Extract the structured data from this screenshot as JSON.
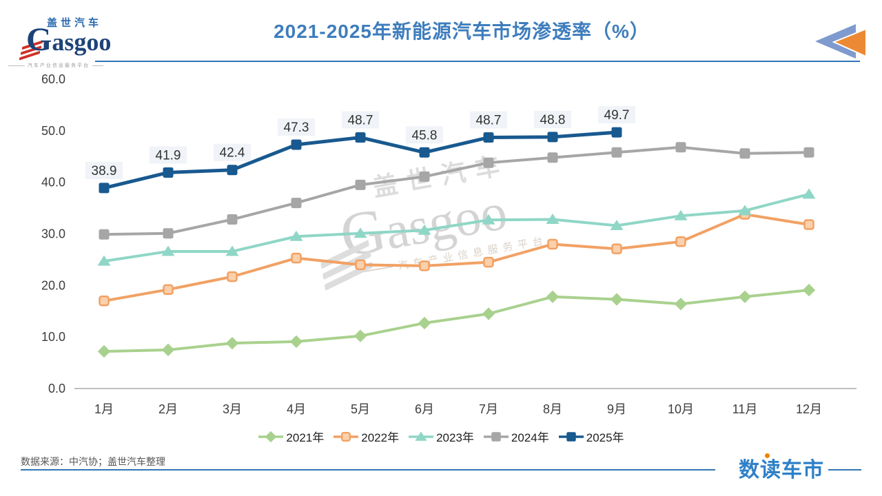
{
  "header": {
    "logo": {
      "cn": "盖世汽车",
      "en": "Gasgoo",
      "tagline": "汽车产业信息服务平台"
    },
    "title": "2021-2025年新能源汽车市场渗透率（%）"
  },
  "watermark": {
    "cn": "盖世汽车",
    "en": "Gasgoo",
    "tagline": "汽车产业信息服务平台"
  },
  "footer": {
    "source": "数据来源：中汽协；盖世汽车整理",
    "brand": "数读车市"
  },
  "colors": {
    "title_blue": "#3e7dbd",
    "divider_blue": "#2e74b5",
    "brand_blue": "#2e80c8",
    "brand_dot_orange": "#f08300",
    "corner_triangle_blue": "#7e9ace",
    "corner_triangle_orange": "#ec8a33",
    "logo_red": "#cf3128",
    "logo_navy": "#1d4379"
  },
  "chart_data": {
    "type": "line",
    "title": "2021-2025年新能源汽车市场渗透率（%）",
    "categories": [
      "1月",
      "2月",
      "3月",
      "4月",
      "5月",
      "6月",
      "7月",
      "8月",
      "9月",
      "10月",
      "11月",
      "12月"
    ],
    "ylim": [
      0,
      60
    ],
    "grid": false,
    "legend_position": "bottom",
    "yticks": [
      {
        "v": 0,
        "label": "0.0"
      },
      {
        "v": 10,
        "label": "10.0"
      },
      {
        "v": 20,
        "label": "20.0"
      },
      {
        "v": 30,
        "label": "30.0"
      },
      {
        "v": 40,
        "label": "40.0"
      },
      {
        "v": 50,
        "label": "50.0"
      },
      {
        "v": 60,
        "label": "60.0"
      }
    ],
    "series": [
      {
        "name": "2021年",
        "color": "#a9d18e",
        "marker": "diamond",
        "values": [
          7.2,
          7.5,
          8.8,
          9.1,
          10.2,
          12.7,
          14.5,
          17.8,
          17.3,
          16.4,
          17.8,
          19.1
        ]
      },
      {
        "name": "2022年",
        "color": "#f1a164",
        "marker": "square-open",
        "marker_fill": "#fbd0ab",
        "values": [
          17.0,
          19.2,
          21.7,
          25.3,
          24.0,
          23.8,
          24.5,
          28.0,
          27.1,
          28.5,
          33.8,
          31.8
        ]
      },
      {
        "name": "2023年",
        "color": "#8fd6c6",
        "marker": "triangle",
        "values": [
          24.7,
          26.6,
          26.6,
          29.5,
          30.1,
          30.7,
          32.7,
          32.8,
          31.6,
          33.5,
          34.5,
          37.7
        ]
      },
      {
        "name": "2024年",
        "color": "#a6a6a6",
        "marker": "square",
        "values": [
          29.9,
          30.1,
          32.8,
          36.0,
          39.5,
          41.1,
          43.8,
          44.8,
          45.8,
          46.8,
          45.6,
          45.8
        ]
      },
      {
        "name": "2025年",
        "color": "#18598f",
        "marker": "square",
        "show_labels": true,
        "values": [
          38.9,
          41.9,
          42.4,
          47.3,
          48.7,
          45.8,
          48.7,
          48.8,
          49.7,
          null,
          null,
          null
        ]
      }
    ]
  }
}
